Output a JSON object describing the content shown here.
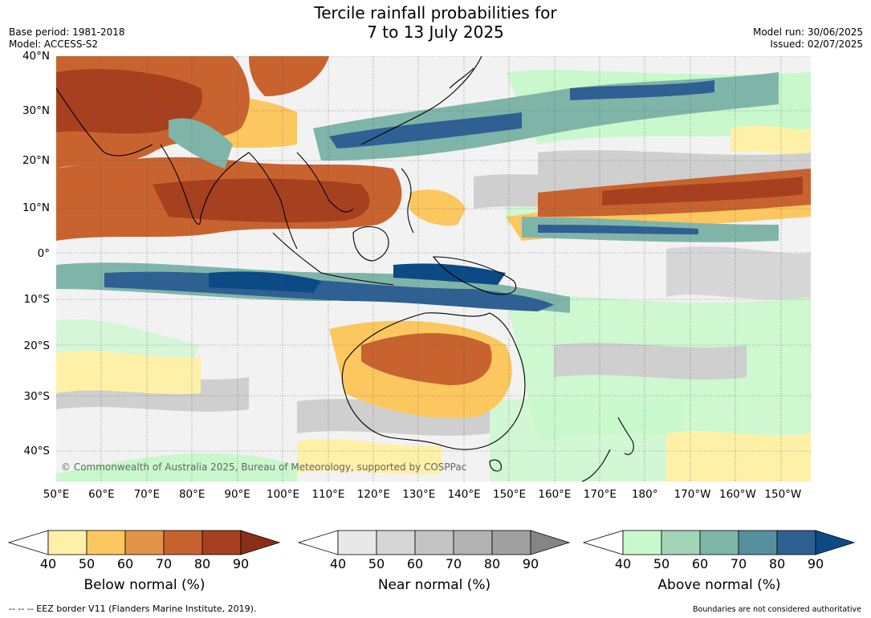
{
  "header": {
    "title_line1": "Tercile rainfall probabilities for",
    "title_line2": "7 to 13 July 2025",
    "base_period": "Base period: 1981-2018",
    "model": "Model: ACCESS-S2",
    "model_run": "Model run: 30/06/2025",
    "issued": "Issued: 02/07/2025"
  },
  "map": {
    "lat_labels": [
      "40°N",
      "30°N",
      "20°N",
      "10°N",
      "0°",
      "10°S",
      "20°S",
      "30°S",
      "40°S"
    ],
    "lon_labels": [
      "50°E",
      "60°E",
      "70°E",
      "80°E",
      "90°E",
      "100°E",
      "110°E",
      "120°E",
      "130°E",
      "140°E",
      "150°E",
      "160°E",
      "170°E",
      "180°",
      "170°W",
      "160°W",
      "150°W"
    ],
    "copyright": "© Commonwealth of Australia 2025, Bureau of Meteorology, supported by COSPPac"
  },
  "legend": {
    "below": {
      "label": "Below normal (%)",
      "ticks": [
        "40",
        "50",
        "60",
        "70",
        "80",
        "90"
      ],
      "colors": [
        "#fff0a8",
        "#fcc75f",
        "#e19448",
        "#c8632f",
        "#a6401f",
        "#8c2d18"
      ]
    },
    "near": {
      "label": "Near normal (%)",
      "ticks": [
        "40",
        "50",
        "60",
        "70",
        "80",
        "90"
      ],
      "colors": [
        "#e8e8e8",
        "#d6d6d6",
        "#c4c4c4",
        "#b2b2b2",
        "#a0a0a0",
        "#858585"
      ]
    },
    "above": {
      "label": "Above normal (%)",
      "ticks": [
        "40",
        "50",
        "60",
        "70",
        "80",
        "90"
      ],
      "colors": [
        "#c9f8cc",
        "#a3d4b6",
        "#7fb5a9",
        "#56909e",
        "#2f6093",
        "#0c4a85"
      ]
    }
  },
  "footer": {
    "eez_note": "--  --  -- EEZ border V11 (Flanders Marine Institute, 2019).",
    "disclaimer": "Boundaries are not considered authoritative"
  }
}
